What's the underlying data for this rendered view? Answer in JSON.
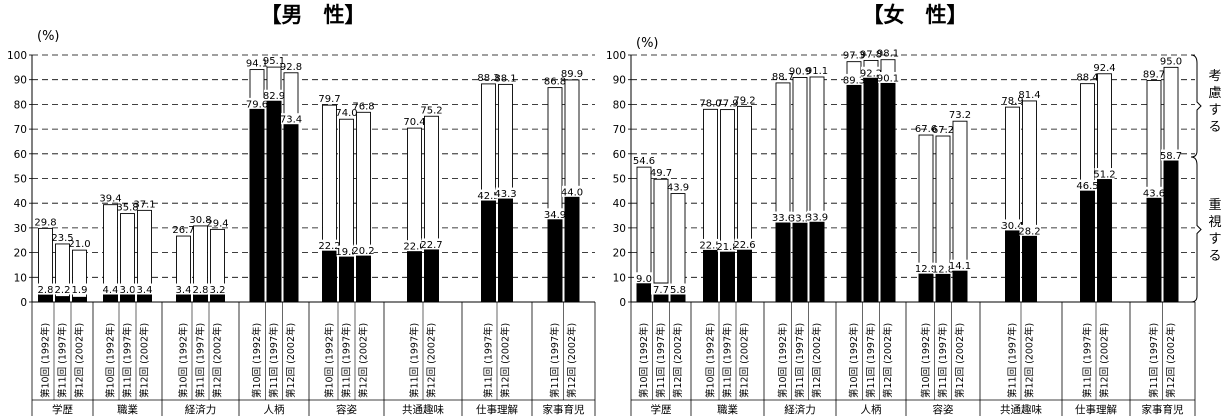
{
  "chart_data": [
    {
      "type": "bar",
      "title": "【男　性】",
      "ylabel": "(%)",
      "ylim": [
        0,
        100
      ],
      "yticks": [
        0,
        10,
        20,
        30,
        40,
        50,
        60,
        70,
        80,
        90,
        100
      ],
      "grid": "dashed horizontal",
      "colors": {
        "consider": "#ffffff",
        "emphasize": "#000000"
      },
      "groups": [
        {
          "category": "学歴",
          "bars": [
            {
              "x": "第10回 (1992年)",
              "consider": 29.8,
              "emphasize": 2.8
            },
            {
              "x": "第11回 (1997年)",
              "consider": 23.5,
              "emphasize": 2.2
            },
            {
              "x": "第12回 (2002年)",
              "consider": 21.0,
              "emphasize": 1.9
            }
          ]
        },
        {
          "category": "職業",
          "bars": [
            {
              "x": "第10回 (1992年)",
              "consider": 39.4,
              "emphasize": 4.4
            },
            {
              "x": "第11回 (1997年)",
              "consider": 35.8,
              "emphasize": 3.0
            },
            {
              "x": "第12回 (2002年)",
              "consider": 37.1,
              "emphasize": 3.4
            }
          ]
        },
        {
          "category": "経済力",
          "bars": [
            {
              "x": "第10回 (1992年)",
              "consider": 26.7,
              "emphasize": 3.4
            },
            {
              "x": "第11回 (1997年)",
              "consider": 30.8,
              "emphasize": 2.8
            },
            {
              "x": "第12回 (2002年)",
              "consider": 29.4,
              "emphasize": 3.2
            }
          ]
        },
        {
          "category": "人柄",
          "bars": [
            {
              "x": "第10回 (1992年)",
              "consider": 94.1,
              "emphasize": 79.6
            },
            {
              "x": "第11回 (1997年)",
              "consider": 95.1,
              "emphasize": 82.9
            },
            {
              "x": "第12回 (2002年)",
              "consider": 92.8,
              "emphasize": 73.4
            }
          ]
        },
        {
          "category": "容姿",
          "bars": [
            {
              "x": "第10回 (1992年)",
              "consider": 79.7,
              "emphasize": 22.2
            },
            {
              "x": "第11回 (1997年)",
              "consider": 74.0,
              "emphasize": 19.8
            },
            {
              "x": "第12回 (2002年)",
              "consider": 76.8,
              "emphasize": 20.2
            }
          ]
        },
        {
          "category": "共通趣味",
          "bars": [
            {
              "x": "第11回 (1997年)",
              "consider": 70.4,
              "emphasize": 22.0
            },
            {
              "x": "第12回 (2002年)",
              "consider": 75.2,
              "emphasize": 22.7
            }
          ]
        },
        {
          "category": "仕事理解",
          "bars": [
            {
              "x": "第11回 (1997年)",
              "consider": 88.3,
              "emphasize": 42.5
            },
            {
              "x": "第12回 (2002年)",
              "consider": 88.1,
              "emphasize": 43.3
            }
          ]
        },
        {
          "category": "家事育児",
          "bars": [
            {
              "x": "第11回 (1997年)",
              "consider": 86.8,
              "emphasize": 34.9
            },
            {
              "x": "第12回 (2002年)",
              "consider": 89.9,
              "emphasize": 44.0
            }
          ]
        }
      ]
    },
    {
      "type": "bar",
      "title": "【女　性】",
      "ylabel": "(%)",
      "ylim": [
        0,
        100
      ],
      "yticks": [
        0,
        10,
        20,
        30,
        40,
        50,
        60,
        70,
        80,
        90,
        100
      ],
      "grid": "dashed horizontal",
      "colors": {
        "consider": "#ffffff",
        "emphasize": "#000000"
      },
      "groups": [
        {
          "category": "学歴",
          "bars": [
            {
              "x": "第10回 (1992年)",
              "consider": 54.6,
              "emphasize": 9.0
            },
            {
              "x": "第11回 (1997年)",
              "consider": 49.7,
              "emphasize": 7.7
            },
            {
              "x": "第12回 (2002年)",
              "consider": 43.9,
              "emphasize": 5.8
            }
          ]
        },
        {
          "category": "職業",
          "bars": [
            {
              "x": "第10回 (1992年)",
              "consider": 78.0,
              "emphasize": 22.5
            },
            {
              "x": "第11回 (1997年)",
              "consider": 77.9,
              "emphasize": 21.8
            },
            {
              "x": "第12回 (2002年)",
              "consider": 79.2,
              "emphasize": 22.6
            }
          ]
        },
        {
          "category": "経済力",
          "bars": [
            {
              "x": "第10回 (1992年)",
              "consider": 88.7,
              "emphasize": 33.6
            },
            {
              "x": "第11回 (1997年)",
              "consider": 90.9,
              "emphasize": 33.5
            },
            {
              "x": "第12回 (2002年)",
              "consider": 91.1,
              "emphasize": 33.9
            }
          ]
        },
        {
          "category": "人柄",
          "bars": [
            {
              "x": "第10回 (1992年)",
              "consider": 97.3,
              "emphasize": 89.3
            },
            {
              "x": "第11回 (1997年)",
              "consider": 97.8,
              "emphasize": 92.2
            },
            {
              "x": "第12回 (2002年)",
              "consider": 98.1,
              "emphasize": 90.1
            }
          ]
        },
        {
          "category": "容姿",
          "bars": [
            {
              "x": "第10回 (1992年)",
              "consider": 67.6,
              "emphasize": 12.9
            },
            {
              "x": "第11回 (1997年)",
              "consider": 67.2,
              "emphasize": 12.8
            },
            {
              "x": "第12回 (2002年)",
              "consider": 73.2,
              "emphasize": 14.1
            }
          ]
        },
        {
          "category": "共通趣味",
          "bars": [
            {
              "x": "第11回 (1997年)",
              "consider": 78.9,
              "emphasize": 30.4
            },
            {
              "x": "第12回 (2002年)",
              "consider": 81.4,
              "emphasize": 28.2
            }
          ]
        },
        {
          "category": "仕事理解",
          "bars": [
            {
              "x": "第11回 (1997年)",
              "consider": 88.4,
              "emphasize": 46.5
            },
            {
              "x": "第12回 (2002年)",
              "consider": 92.4,
              "emphasize": 51.2
            }
          ]
        },
        {
          "category": "家事育児",
          "bars": [
            {
              "x": "第11回 (1997年)",
              "consider": 89.7,
              "emphasize": 43.6
            },
            {
              "x": "第12回 (2002年)",
              "consider": 95.0,
              "emphasize": 58.7
            }
          ]
        }
      ],
      "annotations": {
        "consider_label": "考慮する",
        "emphasize_label": "重視する"
      }
    }
  ]
}
